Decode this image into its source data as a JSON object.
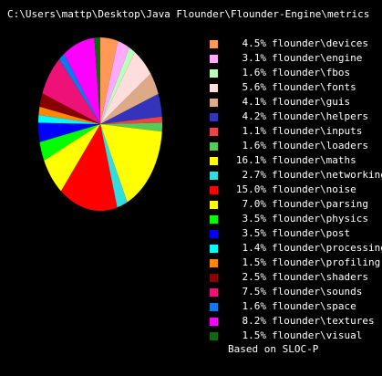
{
  "title": "C:\\Users\\mattp\\Desktop\\Java Flounder\\Flounder-Engine\\metrics",
  "footnote": "Based on SLOC-P",
  "chart_data": {
    "type": "pie",
    "title": "C:\\Users\\mattp\\Desktop\\Java Flounder\\Flounder-Engine\\metrics",
    "legend_position": "right",
    "slices": [
      {
        "label": "flounder\\devices",
        "pct_label": "4.5%",
        "value": 4.5,
        "color": "#ff9955"
      },
      {
        "label": "flounder\\engine",
        "pct_label": "3.1%",
        "value": 3.1,
        "color": "#ffaaff"
      },
      {
        "label": "flounder\\fbos",
        "pct_label": "1.6%",
        "value": 1.6,
        "color": "#bbffbb"
      },
      {
        "label": "flounder\\fonts",
        "pct_label": "5.6%",
        "value": 5.6,
        "color": "#ffdddd"
      },
      {
        "label": "flounder\\guis",
        "pct_label": "4.1%",
        "value": 4.1,
        "color": "#ddaa88"
      },
      {
        "label": "flounder\\helpers",
        "pct_label": "4.2%",
        "value": 4.2,
        "color": "#3333bb"
      },
      {
        "label": "flounder\\inputs",
        "pct_label": "1.1%",
        "value": 1.1,
        "color": "#ee4444"
      },
      {
        "label": "flounder\\loaders",
        "pct_label": "1.6%",
        "value": 1.6,
        "color": "#55cc55"
      },
      {
        "label": "flounder\\maths",
        "pct_label": "16.1%",
        "value": 16.1,
        "color": "#ffff00"
      },
      {
        "label": "flounder\\networking",
        "pct_label": "2.7%",
        "value": 2.7,
        "color": "#33dddd"
      },
      {
        "label": "flounder\\noise",
        "pct_label": "15.0%",
        "value": 15.0,
        "color": "#ff0000"
      },
      {
        "label": "flounder\\parsing",
        "pct_label": "7.0%",
        "value": 7.0,
        "color": "#ffff00"
      },
      {
        "label": "flounder\\physics",
        "pct_label": "3.5%",
        "value": 3.5,
        "color": "#00ff00"
      },
      {
        "label": "flounder\\post",
        "pct_label": "3.5%",
        "value": 3.5,
        "color": "#0000ff"
      },
      {
        "label": "flounder\\processing",
        "pct_label": "1.4%",
        "value": 1.4,
        "color": "#00ffff"
      },
      {
        "label": "flounder\\profiling",
        "pct_label": "1.5%",
        "value": 1.5,
        "color": "#ff8800"
      },
      {
        "label": "flounder\\shaders",
        "pct_label": "2.5%",
        "value": 2.5,
        "color": "#880000"
      },
      {
        "label": "flounder\\sounds",
        "pct_label": "7.5%",
        "value": 7.5,
        "color": "#ee1177"
      },
      {
        "label": "flounder\\space",
        "pct_label": "1.6%",
        "value": 1.6,
        "color": "#1177ee"
      },
      {
        "label": "flounder\\textures",
        "pct_label": "8.2%",
        "value": 8.2,
        "color": "#ff00ff"
      },
      {
        "label": "flounder\\visual",
        "pct_label": "1.5%",
        "value": 1.5,
        "color": "#116611"
      }
    ]
  }
}
